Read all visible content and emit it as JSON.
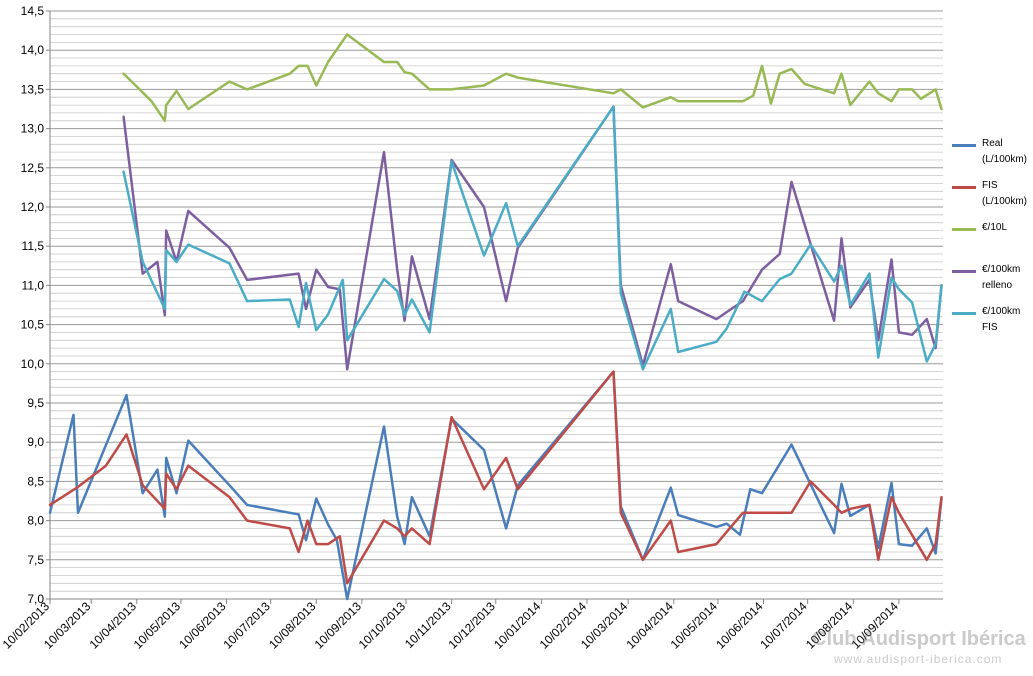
{
  "chart_data": {
    "type": "line",
    "title": "",
    "xlabel": "",
    "ylabel": "",
    "ylim": [
      7.0,
      14.5
    ],
    "xlim": [
      "2013-02-10",
      "2014-10-10"
    ],
    "y_ticks": [
      "7,0",
      "7,5",
      "8,0",
      "8,5",
      "9,0",
      "9,5",
      "10,0",
      "10,5",
      "11,0",
      "11,5",
      "12,0",
      "12,5",
      "13,0",
      "13,5",
      "14,0",
      "14,5"
    ],
    "x_ticks": [
      "10/02/2013",
      "10/03/2013",
      "10/04/2013",
      "10/05/2013",
      "10/06/2013",
      "10/07/2013",
      "10/08/2013",
      "10/09/2013",
      "10/10/2013",
      "10/11/2013",
      "10/12/2013",
      "10/01/2014",
      "10/02/2014",
      "10/03/2014",
      "10/04/2014",
      "10/05/2014",
      "10/06/2014",
      "10/07/2014",
      "10/08/2014",
      "10/09/2014"
    ],
    "grid": true,
    "legend_position": "right",
    "series": [
      {
        "name": "Real (L/100km)",
        "color": "#4a7ebb",
        "points": [
          [
            "2013-02-10",
            8.1
          ],
          [
            "2013-02-26",
            9.35
          ],
          [
            "2013-03-01",
            8.1
          ],
          [
            "2013-04-03",
            9.6
          ],
          [
            "2013-04-14",
            8.35
          ],
          [
            "2013-04-24",
            8.65
          ],
          [
            "2013-04-29",
            8.05
          ],
          [
            "2013-04-30",
            8.8
          ],
          [
            "2013-05-07",
            8.35
          ],
          [
            "2013-05-15",
            9.02
          ],
          [
            "2013-06-12",
            8.45
          ],
          [
            "2013-06-24",
            8.2
          ],
          [
            "2013-07-23",
            8.1
          ],
          [
            "2013-07-29",
            8.08
          ],
          [
            "2013-08-03",
            7.75
          ],
          [
            "2013-08-10",
            8.28
          ],
          [
            "2013-08-18",
            7.95
          ],
          [
            "2013-08-24",
            7.75
          ],
          [
            "2013-08-31",
            7.0
          ],
          [
            "2013-09-25",
            9.2
          ],
          [
            "2013-10-04",
            8.05
          ],
          [
            "2013-10-09",
            7.7
          ],
          [
            "2013-10-14",
            8.3
          ],
          [
            "2013-10-26",
            7.8
          ],
          [
            "2013-11-10",
            9.3
          ],
          [
            "2013-12-02",
            8.9
          ],
          [
            "2013-12-17",
            7.9
          ],
          [
            "2013-12-25",
            8.45
          ],
          [
            "2014-02-28",
            9.9
          ],
          [
            "2014-03-05",
            8.18
          ],
          [
            "2014-03-20",
            7.5
          ],
          [
            "2014-04-08",
            8.42
          ],
          [
            "2014-04-13",
            8.07
          ],
          [
            "2014-05-09",
            7.92
          ],
          [
            "2014-05-16",
            7.96
          ],
          [
            "2014-05-25",
            7.82
          ],
          [
            "2014-06-01",
            8.4
          ],
          [
            "2014-06-09",
            8.35
          ],
          [
            "2014-06-29",
            8.97
          ],
          [
            "2014-07-28",
            7.84
          ],
          [
            "2014-08-02",
            8.47
          ],
          [
            "2014-08-08",
            8.06
          ],
          [
            "2014-08-21",
            8.2
          ],
          [
            "2014-08-27",
            7.65
          ],
          [
            "2014-09-05",
            8.48
          ],
          [
            "2014-09-10",
            7.7
          ],
          [
            "2014-09-19",
            7.68
          ],
          [
            "2014-09-29",
            7.9
          ],
          [
            "2014-10-05",
            7.58
          ],
          [
            "2014-10-09",
            8.28
          ]
        ]
      },
      {
        "name": "FIS (L/100km)",
        "color": "#be4b48",
        "points": [
          [
            "2013-02-10",
            8.2
          ],
          [
            "2013-03-01",
            8.43
          ],
          [
            "2013-03-20",
            8.7
          ],
          [
            "2013-04-03",
            9.1
          ],
          [
            "2013-04-14",
            8.45
          ],
          [
            "2013-04-29",
            8.15
          ],
          [
            "2013-04-30",
            8.6
          ],
          [
            "2013-05-07",
            8.4
          ],
          [
            "2013-05-15",
            8.7
          ],
          [
            "2013-06-12",
            8.3
          ],
          [
            "2013-06-24",
            8.0
          ],
          [
            "2013-07-23",
            7.9
          ],
          [
            "2013-07-29",
            7.6
          ],
          [
            "2013-08-04",
            8.0
          ],
          [
            "2013-08-10",
            7.7
          ],
          [
            "2013-08-18",
            7.7
          ],
          [
            "2013-08-26",
            7.8
          ],
          [
            "2013-08-31",
            7.2
          ],
          [
            "2013-09-25",
            8.0
          ],
          [
            "2013-10-04",
            7.9
          ],
          [
            "2013-10-09",
            7.8
          ],
          [
            "2013-10-14",
            7.9
          ],
          [
            "2013-10-26",
            7.7
          ],
          [
            "2013-11-10",
            9.32
          ],
          [
            "2013-12-02",
            8.4
          ],
          [
            "2013-12-17",
            8.8
          ],
          [
            "2013-12-25",
            8.4
          ],
          [
            "2014-02-28",
            9.9
          ],
          [
            "2014-03-05",
            8.1
          ],
          [
            "2014-03-20",
            7.5
          ],
          [
            "2014-04-08",
            8.0
          ],
          [
            "2014-04-13",
            7.6
          ],
          [
            "2014-05-09",
            7.7
          ],
          [
            "2014-05-27",
            8.1
          ],
          [
            "2014-06-09",
            8.1
          ],
          [
            "2014-06-29",
            8.1
          ],
          [
            "2014-07-12",
            8.5
          ],
          [
            "2014-07-28",
            8.2
          ],
          [
            "2014-08-02",
            8.1
          ],
          [
            "2014-08-08",
            8.15
          ],
          [
            "2014-08-21",
            8.2
          ],
          [
            "2014-08-27",
            7.5
          ],
          [
            "2014-09-05",
            8.3
          ],
          [
            "2014-09-10",
            8.1
          ],
          [
            "2014-09-29",
            7.5
          ],
          [
            "2014-10-05",
            7.7
          ],
          [
            "2014-10-09",
            8.3
          ]
        ]
      },
      {
        "name": "€/10L",
        "color": "#98b954",
        "points": [
          [
            "2013-04-01",
            13.7
          ],
          [
            "2013-04-20",
            13.35
          ],
          [
            "2013-04-29",
            13.1
          ],
          [
            "2013-04-30",
            13.3
          ],
          [
            "2013-05-07",
            13.48
          ],
          [
            "2013-05-15",
            13.25
          ],
          [
            "2013-06-12",
            13.6
          ],
          [
            "2013-06-24",
            13.5
          ],
          [
            "2013-07-23",
            13.7
          ],
          [
            "2013-07-29",
            13.8
          ],
          [
            "2013-08-04",
            13.8
          ],
          [
            "2013-08-10",
            13.55
          ],
          [
            "2013-08-18",
            13.85
          ],
          [
            "2013-08-31",
            14.2
          ],
          [
            "2013-09-25",
            13.85
          ],
          [
            "2013-10-04",
            13.85
          ],
          [
            "2013-10-09",
            13.72
          ],
          [
            "2013-10-14",
            13.7
          ],
          [
            "2013-10-26",
            13.5
          ],
          [
            "2013-11-10",
            13.5
          ],
          [
            "2013-12-02",
            13.55
          ],
          [
            "2013-12-17",
            13.7
          ],
          [
            "2013-12-25",
            13.65
          ],
          [
            "2014-02-28",
            13.45
          ],
          [
            "2014-03-05",
            13.5
          ],
          [
            "2014-03-20",
            13.27
          ],
          [
            "2014-04-08",
            13.4
          ],
          [
            "2014-04-13",
            13.35
          ],
          [
            "2014-05-09",
            13.35
          ],
          [
            "2014-05-27",
            13.35
          ],
          [
            "2014-06-03",
            13.42
          ],
          [
            "2014-06-09",
            13.8
          ],
          [
            "2014-06-15",
            13.32
          ],
          [
            "2014-06-21",
            13.7
          ],
          [
            "2014-06-29",
            13.76
          ],
          [
            "2014-07-08",
            13.57
          ],
          [
            "2014-07-28",
            13.45
          ],
          [
            "2014-08-02",
            13.7
          ],
          [
            "2014-08-08",
            13.3
          ],
          [
            "2014-08-21",
            13.6
          ],
          [
            "2014-08-27",
            13.45
          ],
          [
            "2014-09-05",
            13.35
          ],
          [
            "2014-09-10",
            13.5
          ],
          [
            "2014-09-19",
            13.5
          ],
          [
            "2014-09-25",
            13.38
          ],
          [
            "2014-10-05",
            13.5
          ],
          [
            "2014-10-09",
            13.25
          ]
        ]
      },
      {
        "name": "€/100km relleno",
        "color": "#7d5fa0",
        "points": [
          [
            "2013-04-01",
            13.15
          ],
          [
            "2013-04-14",
            11.15
          ],
          [
            "2013-04-24",
            11.3
          ],
          [
            "2013-04-29",
            10.62
          ],
          [
            "2013-04-30",
            11.7
          ],
          [
            "2013-05-07",
            11.3
          ],
          [
            "2013-05-15",
            11.95
          ],
          [
            "2013-06-12",
            11.48
          ],
          [
            "2013-06-24",
            11.07
          ],
          [
            "2013-07-29",
            11.15
          ],
          [
            "2013-08-03",
            10.7
          ],
          [
            "2013-08-10",
            11.2
          ],
          [
            "2013-08-18",
            10.98
          ],
          [
            "2013-08-26",
            10.95
          ],
          [
            "2013-08-31",
            9.93
          ],
          [
            "2013-09-25",
            12.7
          ],
          [
            "2013-10-04",
            11.2
          ],
          [
            "2013-10-09",
            10.55
          ],
          [
            "2013-10-14",
            11.37
          ],
          [
            "2013-10-26",
            10.57
          ],
          [
            "2013-11-10",
            12.6
          ],
          [
            "2013-12-02",
            12.0
          ],
          [
            "2013-12-17",
            10.8
          ],
          [
            "2013-12-25",
            11.48
          ],
          [
            "2014-02-28",
            13.28
          ],
          [
            "2014-03-05",
            11.0
          ],
          [
            "2014-03-20",
            9.98
          ],
          [
            "2014-04-08",
            11.27
          ],
          [
            "2014-04-13",
            10.8
          ],
          [
            "2014-05-09",
            10.57
          ],
          [
            "2014-05-27",
            10.8
          ],
          [
            "2014-06-09",
            11.2
          ],
          [
            "2014-06-21",
            11.4
          ],
          [
            "2014-06-29",
            12.32
          ],
          [
            "2014-07-28",
            10.55
          ],
          [
            "2014-08-02",
            11.6
          ],
          [
            "2014-08-08",
            10.72
          ],
          [
            "2014-08-21",
            11.07
          ],
          [
            "2014-08-27",
            10.3
          ],
          [
            "2014-09-05",
            11.33
          ],
          [
            "2014-09-10",
            10.4
          ],
          [
            "2014-09-19",
            10.37
          ],
          [
            "2014-09-29",
            10.57
          ],
          [
            "2014-10-05",
            10.2
          ],
          [
            "2014-10-09",
            11.0
          ]
        ]
      },
      {
        "name": "€/100km FIS",
        "color": "#4bacc6",
        "points": [
          [
            "2013-04-01",
            12.45
          ],
          [
            "2013-04-14",
            11.3
          ],
          [
            "2013-04-29",
            10.7
          ],
          [
            "2013-04-30",
            11.45
          ],
          [
            "2013-05-07",
            11.3
          ],
          [
            "2013-05-15",
            11.52
          ],
          [
            "2013-06-12",
            11.28
          ],
          [
            "2013-06-24",
            10.8
          ],
          [
            "2013-07-23",
            10.82
          ],
          [
            "2013-07-29",
            10.47
          ],
          [
            "2013-08-03",
            11.03
          ],
          [
            "2013-08-10",
            10.43
          ],
          [
            "2013-08-18",
            10.63
          ],
          [
            "2013-08-28",
            11.07
          ],
          [
            "2013-08-31",
            10.3
          ],
          [
            "2013-09-25",
            11.08
          ],
          [
            "2013-10-04",
            10.93
          ],
          [
            "2013-10-09",
            10.62
          ],
          [
            "2013-10-14",
            10.82
          ],
          [
            "2013-10-26",
            10.4
          ],
          [
            "2013-11-10",
            12.58
          ],
          [
            "2013-12-02",
            11.38
          ],
          [
            "2013-12-17",
            12.05
          ],
          [
            "2013-12-25",
            11.5
          ],
          [
            "2014-02-28",
            13.28
          ],
          [
            "2014-03-05",
            10.9
          ],
          [
            "2014-03-20",
            9.93
          ],
          [
            "2014-04-08",
            10.7
          ],
          [
            "2014-04-13",
            10.15
          ],
          [
            "2014-05-09",
            10.28
          ],
          [
            "2014-05-16",
            10.45
          ],
          [
            "2014-05-28",
            10.92
          ],
          [
            "2014-06-09",
            10.8
          ],
          [
            "2014-06-21",
            11.08
          ],
          [
            "2014-06-29",
            11.15
          ],
          [
            "2014-07-12",
            11.52
          ],
          [
            "2014-07-28",
            11.05
          ],
          [
            "2014-08-02",
            11.25
          ],
          [
            "2014-08-08",
            10.75
          ],
          [
            "2014-08-21",
            11.15
          ],
          [
            "2014-08-27",
            10.08
          ],
          [
            "2014-09-05",
            11.1
          ],
          [
            "2014-09-10",
            10.95
          ],
          [
            "2014-09-19",
            10.78
          ],
          [
            "2014-09-29",
            10.03
          ],
          [
            "2014-10-05",
            10.25
          ],
          [
            "2014-10-09",
            11.0
          ]
        ]
      }
    ]
  },
  "watermark": {
    "title": "Club Audisport Ibérica",
    "url": "www.audisport-iberica.com"
  }
}
